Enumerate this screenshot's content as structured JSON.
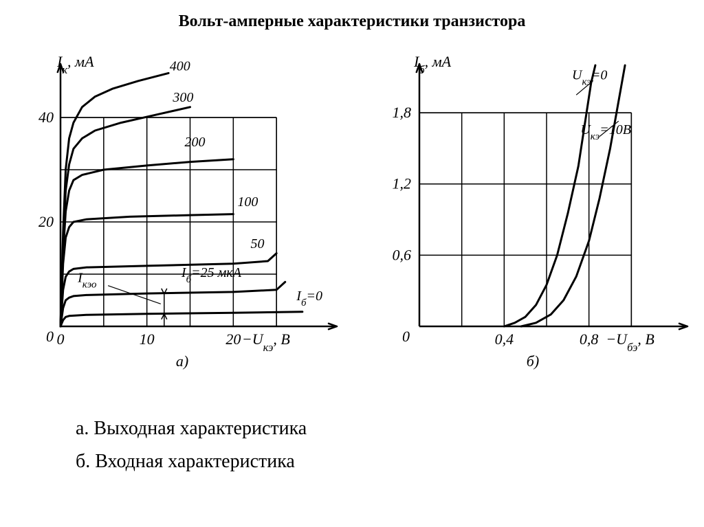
{
  "title": "Вольт-амперные характеристики транзистора",
  "caption_a": "а. Выходная характеристика",
  "caption_b": "б. Входная характеристика",
  "global": {
    "stroke_color": "#000000",
    "background_color": "#ffffff",
    "axis_width": 2.5,
    "grid_width": 1.5,
    "curve_width": 3.0,
    "tick_fontsize": 22,
    "label_fontsize": 22,
    "curve_label_fontsize": 20,
    "font_style": "italic"
  },
  "chart_a": {
    "type": "line-family",
    "sublabel": "а)",
    "y_axis_label": "Iк, мА",
    "x_axis_label": "−Uкэ, В",
    "xlim": [
      0,
      30
    ],
    "ylim": [
      0,
      50
    ],
    "x_ticks": [
      0,
      10,
      20
    ],
    "y_ticks": [
      20,
      40
    ],
    "x_grid": [
      5,
      10,
      15,
      20,
      25
    ],
    "y_grid": [
      10,
      20,
      30,
      40
    ],
    "annotations": {
      "Ikeo": "Iкэо",
      "Ib_eq": "Iб=25 мкА",
      "Ib_zero": "Iб=0"
    },
    "series": [
      {
        "label": "400",
        "pts": [
          [
            0,
            0
          ],
          [
            0.3,
            18
          ],
          [
            0.6,
            30
          ],
          [
            1.0,
            36
          ],
          [
            1.5,
            39
          ],
          [
            2.5,
            42
          ],
          [
            4,
            44
          ],
          [
            6,
            45.5
          ],
          [
            9,
            47
          ],
          [
            12.5,
            48.5
          ]
        ]
      },
      {
        "label": "300",
        "pts": [
          [
            0,
            0
          ],
          [
            0.3,
            16
          ],
          [
            0.6,
            26
          ],
          [
            1.0,
            31
          ],
          [
            1.5,
            34
          ],
          [
            2.5,
            36
          ],
          [
            4,
            37.5
          ],
          [
            7,
            39
          ],
          [
            11,
            40.5
          ],
          [
            15,
            42
          ]
        ]
      },
      {
        "label": "200",
        "pts": [
          [
            0,
            0
          ],
          [
            0.3,
            14
          ],
          [
            0.6,
            22
          ],
          [
            1.0,
            26
          ],
          [
            1.5,
            28
          ],
          [
            2.5,
            29
          ],
          [
            5,
            30
          ],
          [
            10,
            30.8
          ],
          [
            15,
            31.5
          ],
          [
            20,
            32
          ]
        ]
      },
      {
        "label": "100",
        "pts": [
          [
            0,
            0
          ],
          [
            0.3,
            12
          ],
          [
            0.6,
            17
          ],
          [
            1.0,
            19
          ],
          [
            1.5,
            20
          ],
          [
            3,
            20.5
          ],
          [
            8,
            21
          ],
          [
            15,
            21.3
          ],
          [
            20,
            21.5
          ]
        ]
      },
      {
        "label": "50",
        "pts": [
          [
            0,
            0
          ],
          [
            0.3,
            7
          ],
          [
            0.6,
            9.5
          ],
          [
            1.0,
            10.5
          ],
          [
            1.5,
            11
          ],
          [
            3,
            11.3
          ],
          [
            10,
            11.6
          ],
          [
            20,
            12
          ],
          [
            24,
            12.5
          ],
          [
            25,
            14
          ]
        ]
      },
      {
        "label": "25",
        "annotation_target": "Ib_eq",
        "pts": [
          [
            0,
            0
          ],
          [
            0.3,
            3.5
          ],
          [
            0.6,
            5
          ],
          [
            1.0,
            5.5
          ],
          [
            1.5,
            5.8
          ],
          [
            3,
            6
          ],
          [
            10,
            6.3
          ],
          [
            20,
            6.6
          ],
          [
            25,
            7
          ],
          [
            26,
            8.5
          ]
        ]
      },
      {
        "label": "0",
        "annotation_target": "Ib_zero",
        "pts": [
          [
            0,
            0
          ],
          [
            0.3,
            1.2
          ],
          [
            0.6,
            1.8
          ],
          [
            1.0,
            2
          ],
          [
            3,
            2.2
          ],
          [
            10,
            2.4
          ],
          [
            20,
            2.6
          ],
          [
            28,
            2.8
          ]
        ]
      }
    ],
    "Ikeo_marker_x": 12
  },
  "chart_b": {
    "type": "line-family",
    "sublabel": "б)",
    "y_axis_label": "Iб, мА",
    "x_axis_label": "−Uбэ, В",
    "xlim": [
      0,
      1.2
    ],
    "ylim": [
      0,
      2.2
    ],
    "x_ticks": [
      0.4,
      0.8
    ],
    "y_ticks": [
      0.6,
      1.2,
      1.8
    ],
    "x_grid": [
      0.2,
      0.4,
      0.6,
      0.8,
      1.0
    ],
    "y_grid": [
      0.6,
      1.2,
      1.8
    ],
    "series": [
      {
        "label": "Uкэ=0",
        "pts": [
          [
            0.4,
            0
          ],
          [
            0.45,
            0.03
          ],
          [
            0.5,
            0.08
          ],
          [
            0.55,
            0.18
          ],
          [
            0.6,
            0.35
          ],
          [
            0.65,
            0.6
          ],
          [
            0.7,
            0.95
          ],
          [
            0.75,
            1.35
          ],
          [
            0.78,
            1.7
          ],
          [
            0.81,
            2.05
          ],
          [
            0.83,
            2.2
          ]
        ]
      },
      {
        "label": "Uкэ=10В",
        "pts": [
          [
            0.48,
            0
          ],
          [
            0.55,
            0.03
          ],
          [
            0.62,
            0.1
          ],
          [
            0.68,
            0.22
          ],
          [
            0.74,
            0.42
          ],
          [
            0.8,
            0.72
          ],
          [
            0.85,
            1.08
          ],
          [
            0.9,
            1.5
          ],
          [
            0.94,
            1.9
          ],
          [
            0.97,
            2.2
          ]
        ]
      }
    ],
    "zero_label": "0",
    "leader_lines": [
      {
        "from": [
          0.74,
          1.95
        ],
        "to": [
          0.82,
          2.07
        ]
      },
      {
        "from": [
          0.85,
          1.6
        ],
        "to": [
          0.94,
          1.73
        ]
      }
    ]
  }
}
